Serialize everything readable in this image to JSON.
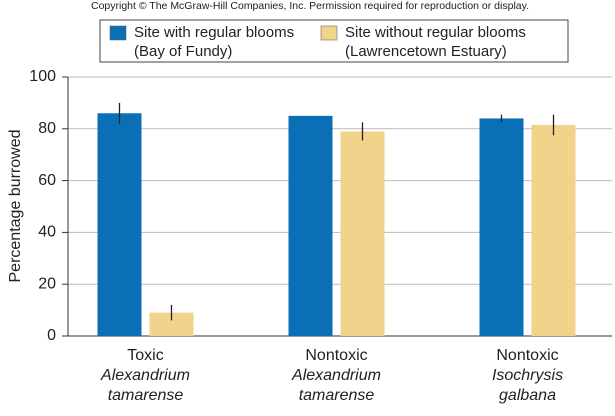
{
  "copyright": "Copyright © The McGraw-Hill Companies, Inc. Permission required for reproduction or display.",
  "chart_data": {
    "type": "bar",
    "y_label": "Percentage burrowed",
    "categories": [
      [
        "Toxic",
        "Alexandrium",
        "tamarense"
      ],
      [
        "Nontoxic",
        "Alexandrium",
        "tamarense"
      ],
      [
        "Nontoxic",
        "Isochrysis",
        "galbana"
      ]
    ],
    "series": [
      {
        "name": [
          "Site with regular blooms",
          "(Bay of Fundy)"
        ],
        "color": "#0b6fb8",
        "values": [
          86,
          85,
          84
        ],
        "errors": [
          4,
          null,
          1.5
        ]
      },
      {
        "name": [
          "Site without regular blooms",
          "(Lawrencetown Estuary)"
        ],
        "color": "#f2d38c",
        "values": [
          9,
          79,
          81.5
        ],
        "errors": [
          3,
          3.5,
          4
        ]
      }
    ],
    "ylim": [
      0,
      100
    ],
    "yticks": [
      0,
      20,
      40,
      60,
      80,
      100
    ],
    "grid": true
  }
}
